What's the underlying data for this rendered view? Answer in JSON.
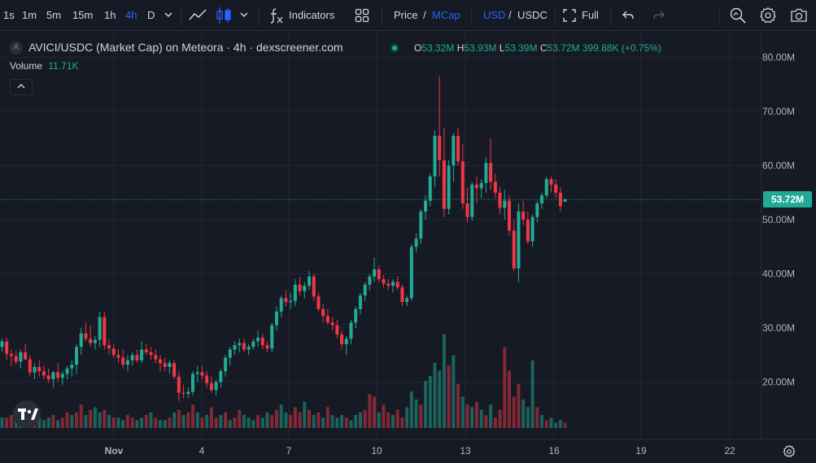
{
  "toolbar": {
    "intervals": [
      "1s",
      "1m",
      "5m",
      "15m",
      "1h",
      "4h",
      "D"
    ],
    "active_interval": "4h",
    "indicators_label": "Indicators",
    "price_label": "Price",
    "slash": "/",
    "mcap_label": "MCap",
    "usd_label": "USD",
    "usdc_label": "USDC",
    "full_label": "Full"
  },
  "legend": {
    "badge": "A",
    "title": "AVICI/USDC (Market Cap) on Meteora · 4h · dexscreener.com",
    "o_key": "O",
    "o_val": "53.32M",
    "h_key": "H",
    "h_val": "53.93M",
    "l_key": "L",
    "l_val": "53.39M",
    "c_key": "C",
    "c_val": "53.72M",
    "change": "399.88K (+0.75%)",
    "volume_label": "Volume",
    "volume_value": "11.71K"
  },
  "last_price_label": "53.72M",
  "colors": {
    "up": "#22ab94",
    "down": "#f23645",
    "accent": "#2962ff",
    "background": "#161a25",
    "grid": "#232734"
  },
  "chart_data": {
    "type": "candlestick",
    "y_axis_ticks": [
      "80.00M",
      "70.00M",
      "60.00M",
      "50.00M",
      "40.00M",
      "30.00M",
      "20.00M"
    ],
    "x_axis_ticks": [
      "Nov",
      "4",
      "7",
      "10",
      "13",
      "16",
      "19",
      "22"
    ],
    "ylim": [
      10,
      82
    ],
    "last_price": 53.72,
    "candles": [
      [
        26.5,
        28.0,
        25.5,
        27.5
      ],
      [
        27.5,
        28.2,
        24.0,
        25.2
      ],
      [
        25.2,
        26.0,
        23.0,
        24.8
      ],
      [
        24.8,
        25.8,
        23.2,
        23.8
      ],
      [
        23.8,
        26.0,
        22.5,
        25.5
      ],
      [
        25.5,
        27.0,
        24.0,
        24.2
      ],
      [
        24.2,
        25.0,
        21.0,
        21.8
      ],
      [
        21.8,
        23.5,
        20.5,
        22.8
      ],
      [
        22.8,
        24.0,
        21.0,
        22.0
      ],
      [
        22.0,
        23.0,
        20.5,
        21.2
      ],
      [
        21.2,
        22.5,
        19.8,
        20.5
      ],
      [
        20.5,
        22.0,
        19.0,
        21.8
      ],
      [
        21.8,
        23.5,
        20.0,
        20.8
      ],
      [
        20.8,
        22.0,
        19.5,
        21.5
      ],
      [
        21.5,
        23.0,
        20.5,
        22.5
      ],
      [
        22.5,
        24.0,
        21.0,
        23.2
      ],
      [
        23.2,
        27.0,
        21.5,
        26.5
      ],
      [
        26.5,
        30.0,
        25.0,
        29.0
      ],
      [
        29.0,
        31.0,
        27.5,
        28.0
      ],
      [
        28.0,
        30.5,
        26.5,
        27.2
      ],
      [
        27.2,
        28.5,
        26.0,
        27.8
      ],
      [
        27.8,
        33.0,
        26.5,
        32.0
      ],
      [
        32.0,
        33.0,
        26.0,
        26.8
      ],
      [
        26.8,
        28.0,
        25.0,
        26.2
      ],
      [
        26.2,
        27.0,
        24.5,
        25.0
      ],
      [
        25.0,
        26.0,
        23.5,
        24.5
      ],
      [
        24.5,
        26.0,
        22.5,
        23.2
      ],
      [
        23.2,
        25.0,
        22.0,
        24.0
      ],
      [
        24.0,
        25.5,
        23.0,
        25.0
      ],
      [
        25.0,
        26.0,
        23.5,
        24.0
      ],
      [
        24.0,
        27.5,
        23.5,
        26.0
      ],
      [
        26.0,
        27.0,
        25.0,
        25.5
      ],
      [
        25.5,
        26.5,
        24.0,
        25.0
      ],
      [
        25.0,
        26.0,
        23.5,
        24.2
      ],
      [
        24.2,
        25.0,
        22.0,
        23.5
      ],
      [
        23.5,
        24.5,
        22.0,
        22.8
      ],
      [
        22.8,
        24.0,
        21.5,
        23.5
      ],
      [
        23.5,
        24.0,
        20.5,
        21.0
      ],
      [
        21.0,
        22.0,
        16.5,
        18.0
      ],
      [
        18.0,
        19.5,
        17.0,
        17.8
      ],
      [
        17.8,
        19.0,
        17.0,
        18.2
      ],
      [
        18.2,
        22.0,
        17.5,
        21.5
      ],
      [
        21.5,
        23.0,
        20.0,
        21.8
      ],
      [
        21.8,
        23.0,
        20.5,
        21.2
      ],
      [
        21.2,
        22.0,
        19.0,
        19.8
      ],
      [
        19.8,
        21.0,
        18.0,
        18.5
      ],
      [
        18.5,
        20.5,
        17.5,
        20.0
      ],
      [
        20.0,
        22.5,
        19.0,
        22.0
      ],
      [
        22.0,
        25.0,
        21.0,
        24.5
      ],
      [
        24.5,
        26.5,
        23.0,
        26.0
      ],
      [
        26.0,
        27.5,
        25.0,
        26.8
      ],
      [
        26.8,
        28.0,
        25.5,
        27.2
      ],
      [
        27.2,
        28.0,
        25.5,
        26.0
      ],
      [
        26.0,
        27.0,
        25.0,
        26.5
      ],
      [
        26.5,
        28.0,
        26.0,
        27.5
      ],
      [
        27.5,
        29.5,
        26.5,
        28.2
      ],
      [
        28.2,
        29.0,
        26.0,
        26.8
      ],
      [
        26.8,
        27.5,
        25.5,
        26.2
      ],
      [
        26.2,
        31.0,
        25.5,
        30.5
      ],
      [
        30.5,
        34.0,
        29.5,
        33.0
      ],
      [
        33.0,
        36.0,
        32.0,
        35.5
      ],
      [
        35.5,
        37.0,
        34.0,
        34.8
      ],
      [
        34.8,
        36.5,
        33.5,
        35.0
      ],
      [
        35.0,
        39.0,
        34.0,
        38.0
      ],
      [
        38.0,
        39.5,
        36.0,
        36.8
      ],
      [
        36.8,
        38.5,
        35.5,
        37.8
      ],
      [
        37.8,
        40.5,
        37.0,
        39.5
      ],
      [
        39.5,
        40.0,
        35.0,
        35.8
      ],
      [
        35.8,
        36.5,
        33.0,
        33.5
      ],
      [
        33.5,
        34.5,
        31.0,
        32.2
      ],
      [
        32.2,
        33.5,
        30.5,
        31.0
      ],
      [
        31.0,
        32.0,
        29.5,
        30.5
      ],
      [
        30.5,
        31.5,
        28.0,
        28.8
      ],
      [
        28.8,
        29.5,
        26.0,
        27.0
      ],
      [
        27.0,
        28.5,
        25.0,
        28.0
      ],
      [
        28.0,
        31.5,
        27.0,
        31.0
      ],
      [
        31.0,
        34.0,
        30.0,
        33.5
      ],
      [
        33.5,
        36.5,
        32.5,
        36.0
      ],
      [
        36.0,
        38.5,
        35.0,
        38.0
      ],
      [
        38.0,
        40.0,
        37.0,
        39.5
      ],
      [
        39.5,
        43.0,
        38.5,
        40.8
      ],
      [
        40.8,
        41.5,
        38.5,
        39.0
      ],
      [
        39.0,
        39.8,
        37.5,
        38.2
      ],
      [
        38.2,
        39.0,
        37.0,
        37.8
      ],
      [
        37.8,
        39.0,
        36.5,
        38.5
      ],
      [
        38.5,
        39.5,
        37.0,
        37.5
      ],
      [
        37.5,
        38.0,
        34.0,
        34.8
      ],
      [
        34.8,
        36.0,
        34.0,
        35.5
      ],
      [
        35.5,
        45.5,
        35.0,
        45.0
      ],
      [
        45.0,
        47.5,
        44.0,
        46.5
      ],
      [
        46.5,
        52.0,
        45.5,
        51.5
      ],
      [
        51.5,
        54.5,
        50.0,
        53.5
      ],
      [
        53.5,
        58.5,
        52.5,
        58.0
      ],
      [
        58.0,
        66.5,
        56.0,
        65.5
      ],
      [
        65.5,
        76.5,
        58.0,
        61.0
      ],
      [
        61.0,
        67.0,
        50.5,
        52.0
      ],
      [
        52.0,
        61.0,
        51.0,
        60.0
      ],
      [
        60.0,
        66.0,
        57.0,
        65.5
      ],
      [
        65.5,
        67.0,
        60.0,
        60.8
      ],
      [
        60.8,
        64.0,
        52.0,
        53.0
      ],
      [
        53.0,
        56.0,
        49.5,
        50.5
      ],
      [
        50.5,
        57.0,
        49.8,
        56.5
      ],
      [
        56.5,
        58.0,
        53.0,
        55.8
      ],
      [
        55.8,
        57.5,
        54.0,
        56.8
      ],
      [
        56.8,
        61.5,
        55.0,
        60.5
      ],
      [
        60.5,
        65.0,
        55.5,
        57.0
      ],
      [
        57.0,
        58.5,
        54.0,
        55.0
      ],
      [
        55.0,
        56.0,
        51.0,
        52.2
      ],
      [
        52.2,
        55.5,
        50.0,
        53.5
      ],
      [
        53.5,
        54.5,
        47.0,
        48.0
      ],
      [
        48.0,
        50.0,
        40.5,
        41.0
      ],
      [
        41.0,
        53.0,
        38.5,
        51.5
      ],
      [
        51.5,
        53.5,
        49.0,
        50.0
      ],
      [
        50.0,
        51.5,
        45.5,
        46.0
      ],
      [
        46.0,
        51.0,
        45.0,
        50.5
      ],
      [
        50.5,
        53.5,
        49.5,
        53.0
      ],
      [
        53.0,
        55.0,
        52.0,
        54.5
      ],
      [
        54.5,
        58.0,
        54.0,
        57.5
      ],
      [
        57.5,
        58.0,
        55.0,
        56.5
      ],
      [
        56.5,
        57.5,
        54.0,
        55.0
      ],
      [
        55.0,
        56.0,
        51.5,
        52.5
      ],
      [
        53.32,
        53.93,
        53.39,
        53.72
      ]
    ],
    "volume": [
      [
        4,
        1
      ],
      [
        4,
        0
      ],
      [
        5,
        0
      ],
      [
        3,
        1
      ],
      [
        4,
        1
      ],
      [
        6,
        0
      ],
      [
        8,
        1
      ],
      [
        5,
        0
      ],
      [
        4,
        1
      ],
      [
        3,
        1
      ],
      [
        4,
        1
      ],
      [
        5,
        0
      ],
      [
        3,
        1
      ],
      [
        4,
        0
      ],
      [
        6,
        0
      ],
      [
        5,
        1
      ],
      [
        6,
        0
      ],
      [
        9,
        0
      ],
      [
        5,
        1
      ],
      [
        7,
        0
      ],
      [
        8,
        1
      ],
      [
        6,
        1
      ],
      [
        7,
        0
      ],
      [
        5,
        1
      ],
      [
        4,
        0
      ],
      [
        4,
        1
      ],
      [
        3,
        1
      ],
      [
        5,
        0
      ],
      [
        4,
        0
      ],
      [
        3,
        1
      ],
      [
        4,
        1
      ],
      [
        5,
        0
      ],
      [
        6,
        1
      ],
      [
        4,
        0
      ],
      [
        3,
        1
      ],
      [
        3,
        1
      ],
      [
        4,
        0
      ],
      [
        6,
        1
      ],
      [
        7,
        0
      ],
      [
        5,
        1
      ],
      [
        6,
        0
      ],
      [
        9,
        0
      ],
      [
        6,
        1
      ],
      [
        4,
        0
      ],
      [
        5,
        1
      ],
      [
        8,
        0
      ],
      [
        4,
        0
      ],
      [
        5,
        1
      ],
      [
        6,
        0
      ],
      [
        3,
        1
      ],
      [
        4,
        0
      ],
      [
        7,
        0
      ],
      [
        5,
        1
      ],
      [
        4,
        1
      ],
      [
        3,
        1
      ],
      [
        5,
        0
      ],
      [
        4,
        1
      ],
      [
        6,
        1
      ],
      [
        5,
        0
      ],
      [
        7,
        0
      ],
      [
        9,
        1
      ],
      [
        6,
        1
      ],
      [
        5,
        0
      ],
      [
        8,
        0
      ],
      [
        6,
        0
      ],
      [
        10,
        1
      ],
      [
        7,
        0
      ],
      [
        5,
        1
      ],
      [
        6,
        0
      ],
      [
        4,
        1
      ],
      [
        8,
        0
      ],
      [
        5,
        1
      ],
      [
        4,
        1
      ],
      [
        5,
        1
      ],
      [
        4,
        0
      ],
      [
        3,
        1
      ],
      [
        5,
        1
      ],
      [
        6,
        1
      ],
      [
        7,
        0
      ],
      [
        13,
        0
      ],
      [
        12,
        0
      ],
      [
        6,
        1
      ],
      [
        9,
        0
      ],
      [
        6,
        0
      ],
      [
        5,
        1
      ],
      [
        7,
        0
      ],
      [
        4,
        0
      ],
      [
        8,
        1
      ],
      [
        14,
        1
      ],
      [
        11,
        1
      ],
      [
        9,
        0
      ],
      [
        18,
        1
      ],
      [
        20,
        1
      ],
      [
        25,
        1
      ],
      [
        22,
        1
      ],
      [
        36,
        1
      ],
      [
        24,
        0
      ],
      [
        28,
        1
      ],
      [
        17,
        0
      ],
      [
        12,
        1
      ],
      [
        9,
        0
      ],
      [
        8,
        1
      ],
      [
        10,
        0
      ],
      [
        7,
        1
      ],
      [
        5,
        0
      ],
      [
        9,
        1
      ],
      [
        4,
        0
      ],
      [
        7,
        0
      ],
      [
        31,
        0
      ],
      [
        22,
        0
      ],
      [
        12,
        0
      ],
      [
        17,
        0
      ],
      [
        11,
        1
      ],
      [
        8,
        1
      ],
      [
        26,
        1
      ],
      [
        8,
        0
      ],
      [
        5,
        1
      ],
      [
        3,
        0
      ],
      [
        4,
        1
      ],
      [
        2,
        1
      ],
      [
        3,
        1
      ],
      [
        2,
        0
      ]
    ]
  }
}
